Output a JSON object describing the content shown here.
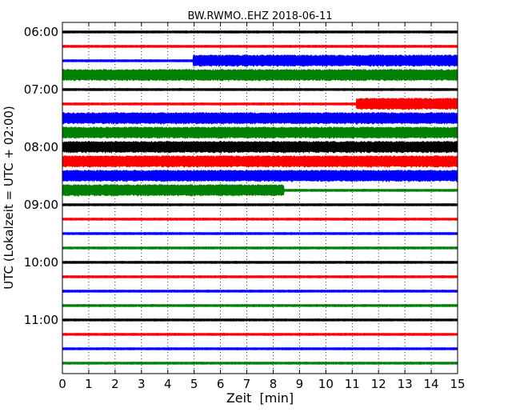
{
  "chart_data": {
    "type": "line",
    "title": "BW.RWMO..EHZ 2018-06-11",
    "xlabel": "Zeit  [min]",
    "ylabel": "UTC (Lokalzeit = UTC + 02:00)",
    "xlim": [
      0,
      15
    ],
    "x_ticks": [
      "0",
      "1",
      "2",
      "3",
      "4",
      "5",
      "6",
      "7",
      "8",
      "9",
      "10",
      "11",
      "12",
      "13",
      "14",
      "15"
    ],
    "y_ticks": [
      "06:00",
      "07:00",
      "08:00",
      "09:00",
      "10:00",
      "11:00"
    ],
    "grid": "vertical dotted",
    "colors": [
      "#000000",
      "#ff0000",
      "#0000ff",
      "#008000"
    ],
    "trace_interval_min": 15,
    "traces": [
      {
        "start": "06:00",
        "color": "#000000",
        "amplitude": [
          {
            "from": 0,
            "to": 15,
            "level": "low"
          }
        ]
      },
      {
        "start": "06:15",
        "color": "#ff0000",
        "amplitude": [
          {
            "from": 0,
            "to": 15,
            "level": "low"
          }
        ]
      },
      {
        "start": "06:30",
        "color": "#0000ff",
        "amplitude": [
          {
            "from": 0,
            "to": 4.95,
            "level": "low"
          },
          {
            "from": 4.95,
            "to": 15,
            "level": "high"
          }
        ]
      },
      {
        "start": "06:45",
        "color": "#008000",
        "amplitude": [
          {
            "from": 0,
            "to": 15,
            "level": "high"
          }
        ]
      },
      {
        "start": "07:00",
        "color": "#000000",
        "amplitude": [
          {
            "from": 0,
            "to": 15,
            "level": "low"
          }
        ]
      },
      {
        "start": "07:15",
        "color": "#ff0000",
        "amplitude": [
          {
            "from": 0,
            "to": 11.15,
            "level": "low"
          },
          {
            "from": 11.15,
            "to": 15,
            "level": "high"
          }
        ]
      },
      {
        "start": "07:30",
        "color": "#0000ff",
        "amplitude": [
          {
            "from": 0,
            "to": 15,
            "level": "high"
          }
        ]
      },
      {
        "start": "07:45",
        "color": "#008000",
        "amplitude": [
          {
            "from": 0,
            "to": 15,
            "level": "high"
          }
        ]
      },
      {
        "start": "08:00",
        "color": "#000000",
        "amplitude": [
          {
            "from": 0,
            "to": 15,
            "level": "high"
          }
        ]
      },
      {
        "start": "08:15",
        "color": "#ff0000",
        "amplitude": [
          {
            "from": 0,
            "to": 15,
            "level": "high"
          }
        ]
      },
      {
        "start": "08:30",
        "color": "#0000ff",
        "amplitude": [
          {
            "from": 0,
            "to": 15,
            "level": "high"
          }
        ]
      },
      {
        "start": "08:45",
        "color": "#008000",
        "amplitude": [
          {
            "from": 0,
            "to": 8.4,
            "level": "high"
          },
          {
            "from": 8.4,
            "to": 15,
            "level": "low"
          }
        ]
      },
      {
        "start": "09:00",
        "color": "#000000",
        "amplitude": [
          {
            "from": 0,
            "to": 15,
            "level": "low"
          }
        ]
      },
      {
        "start": "09:15",
        "color": "#ff0000",
        "amplitude": [
          {
            "from": 0,
            "to": 15,
            "level": "low"
          }
        ]
      },
      {
        "start": "09:30",
        "color": "#0000ff",
        "amplitude": [
          {
            "from": 0,
            "to": 15,
            "level": "low"
          }
        ]
      },
      {
        "start": "09:45",
        "color": "#008000",
        "amplitude": [
          {
            "from": 0,
            "to": 15,
            "level": "low"
          }
        ]
      },
      {
        "start": "10:00",
        "color": "#000000",
        "amplitude": [
          {
            "from": 0,
            "to": 15,
            "level": "low"
          }
        ]
      },
      {
        "start": "10:15",
        "color": "#ff0000",
        "amplitude": [
          {
            "from": 0,
            "to": 15,
            "level": "low"
          }
        ]
      },
      {
        "start": "10:30",
        "color": "#0000ff",
        "amplitude": [
          {
            "from": 0,
            "to": 15,
            "level": "low"
          }
        ]
      },
      {
        "start": "10:45",
        "color": "#008000",
        "amplitude": [
          {
            "from": 0,
            "to": 15,
            "level": "low"
          }
        ]
      },
      {
        "start": "11:00",
        "color": "#000000",
        "amplitude": [
          {
            "from": 0,
            "to": 15,
            "level": "low"
          }
        ]
      },
      {
        "start": "11:15",
        "color": "#ff0000",
        "amplitude": [
          {
            "from": 0,
            "to": 15,
            "level": "low"
          }
        ]
      },
      {
        "start": "11:30",
        "color": "#0000ff",
        "amplitude": [
          {
            "from": 0,
            "to": 15,
            "level": "low"
          }
        ]
      },
      {
        "start": "11:45",
        "color": "#008000",
        "amplitude": [
          {
            "from": 0,
            "to": 15,
            "level": "low"
          }
        ]
      }
    ]
  }
}
